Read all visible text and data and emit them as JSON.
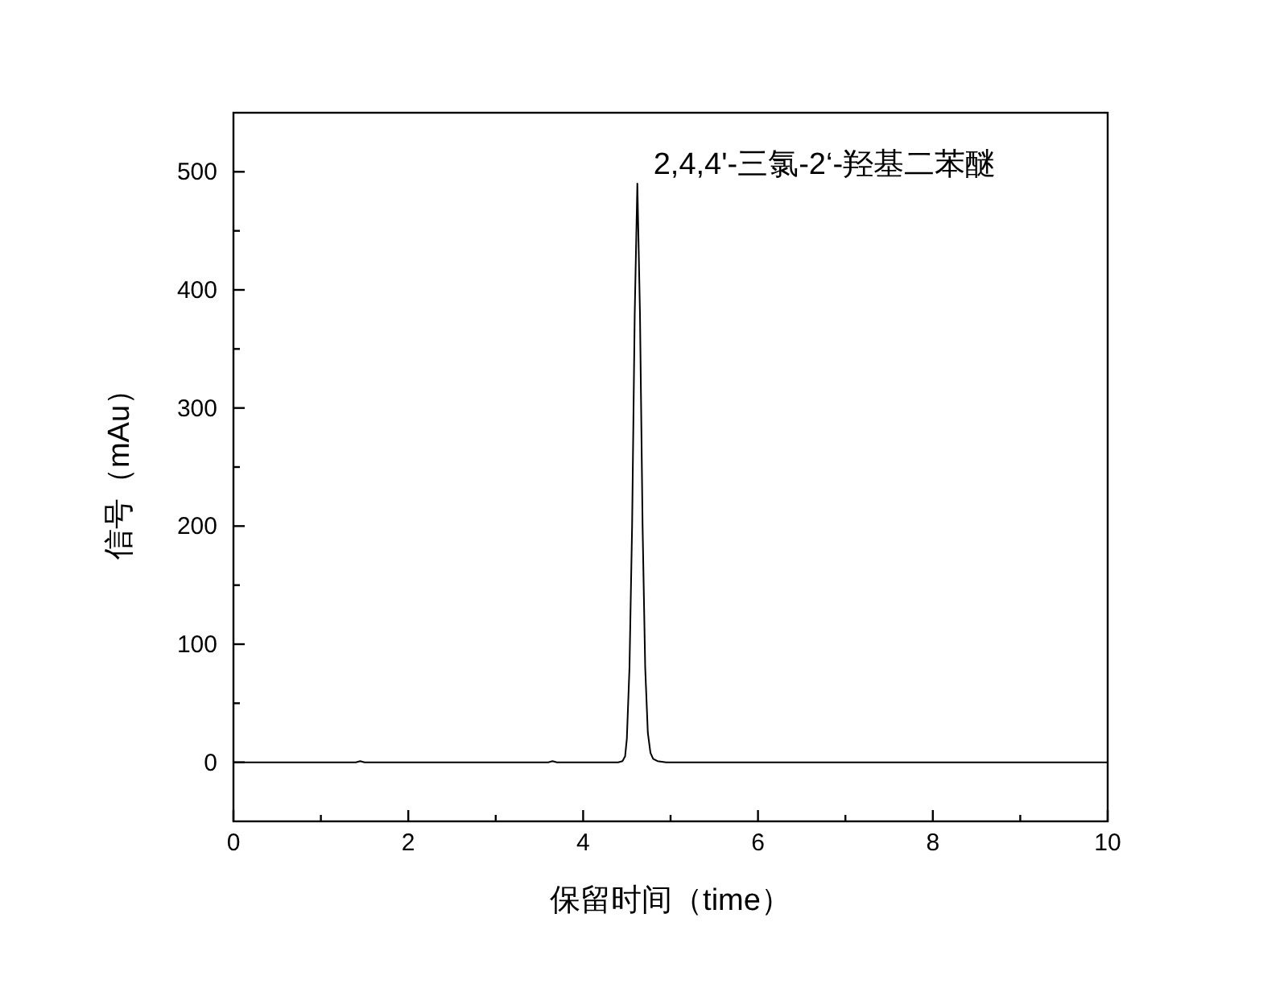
{
  "chart_data": {
    "type": "line",
    "xlabel": "保留时间（time）",
    "ylabel": "信号（mAu）",
    "x": [
      0,
      1.4,
      1.45,
      1.5,
      3.6,
      3.65,
      3.7,
      4.4,
      4.45,
      4.48,
      4.5,
      4.53,
      4.56,
      4.59,
      4.62,
      4.65,
      4.68,
      4.71,
      4.74,
      4.77,
      4.8,
      4.85,
      4.95,
      10
    ],
    "series": [
      {
        "color": "#000000",
        "values": [
          0,
          0,
          1,
          0,
          0,
          1,
          0,
          0,
          1,
          5,
          20,
          80,
          200,
          380,
          490,
          380,
          200,
          80,
          25,
          8,
          3,
          1,
          0,
          0
        ]
      }
    ],
    "annotations": [
      {
        "text": "2,4,4'-三氯-2‘-羟基二苯醚",
        "x": 4.62,
        "y": 490
      }
    ],
    "xlim": [
      0,
      10
    ],
    "xticks": [
      0,
      {
        "value": 1,
        "label": null
      },
      2,
      {
        "value": 3,
        "label": null
      },
      4,
      {
        "value": 5,
        "label": null
      },
      6,
      {
        "value": 7,
        "label": null
      },
      8,
      {
        "value": 9,
        "label": null
      },
      10
    ],
    "ylim": [
      -50,
      550
    ],
    "yticks": [
      0,
      {
        "value": 50,
        "label": null
      },
      100,
      {
        "value": 150,
        "label": null
      },
      200,
      {
        "value": 250,
        "label": null
      },
      300,
      {
        "value": 350,
        "label": null
      },
      400,
      {
        "value": 450,
        "label": null
      },
      500
    ],
    "marker": "none",
    "line_style": "solid"
  }
}
